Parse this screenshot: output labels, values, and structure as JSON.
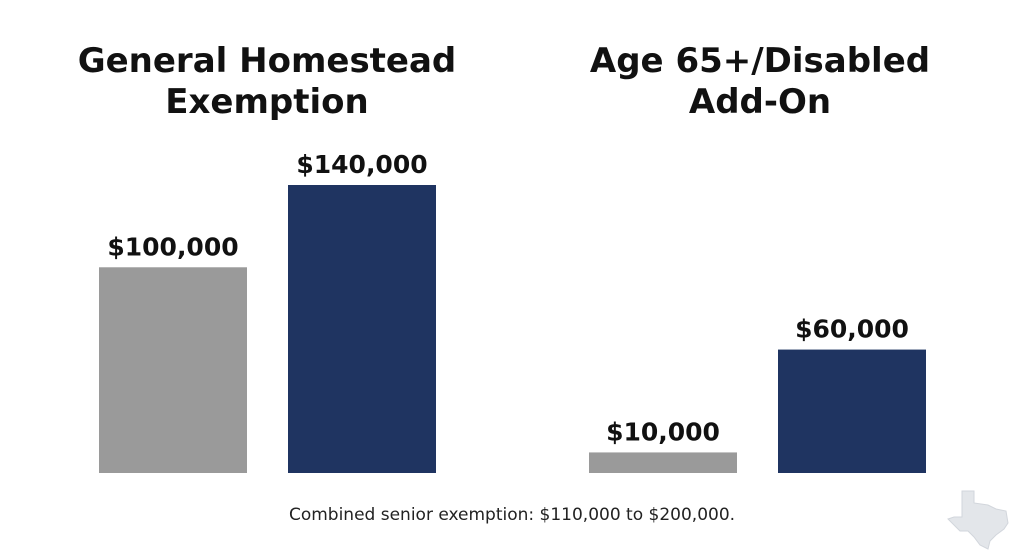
{
  "colors": {
    "before": "#9a9a9a",
    "after": "#1f3461",
    "text": "#111111"
  },
  "footnote": "Combined senior exemption: $110,000 to $200,000.",
  "icon": "texas-state-outline-icon",
  "chart_data": [
    {
      "type": "bar",
      "title": "General Homestead Exemption",
      "title_lines": [
        "General Homestead",
        "Exemption"
      ],
      "categories": [
        "",
        ""
      ],
      "values": [
        100000,
        140000
      ],
      "labels": [
        "$100,000",
        "$140,000"
      ],
      "bar_colors": [
        "#9a9a9a",
        "#1f3461"
      ],
      "ylim": [
        0,
        140000
      ],
      "grid": false
    },
    {
      "type": "bar",
      "title": "Age 65+/Disabled Add-On",
      "title_lines": [
        "Age 65+/Disabled",
        "Add-On"
      ],
      "categories": [
        "",
        ""
      ],
      "values": [
        10000,
        60000
      ],
      "labels": [
        "$10,000",
        "$60,000"
      ],
      "bar_colors": [
        "#9a9a9a",
        "#1f3461"
      ],
      "ylim": [
        0,
        140000
      ],
      "grid": false
    }
  ]
}
